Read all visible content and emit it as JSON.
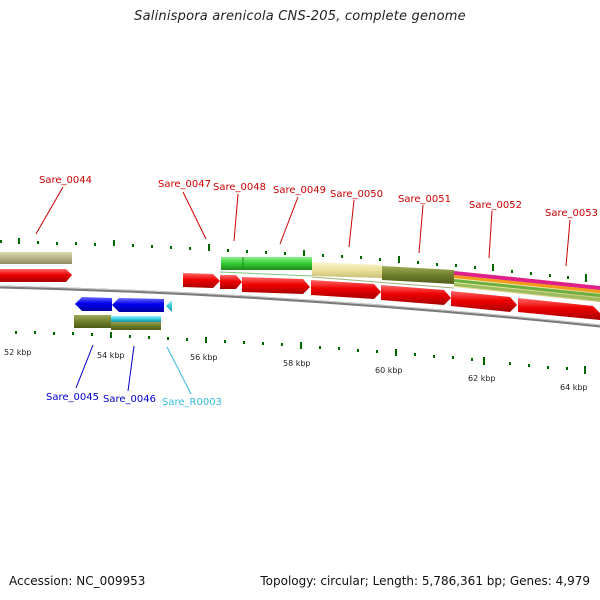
{
  "title": "Salinispora arenicola CNS-205, complete genome",
  "footer": {
    "accession": "Accession: NC_009953",
    "summary": "Topology: circular; Length: 5,786,361 bp; Genes: 4,979"
  },
  "colors": {
    "gene_label": "#cc0000",
    "cds_red": "#ee0000",
    "cds_blue": "#0000ee",
    "rna_cyan": "#33ccee",
    "tick": "#006600",
    "backbone": "#888888",
    "track_green": "#44cc44",
    "track_olive": "#778833",
    "track_khaki": "#b8b488",
    "track_yellow": "#eee5a0",
    "track_cyan": "#33ccdd"
  },
  "kbp_labels": [
    "52 kbp",
    "54 kbp",
    "56 kbp",
    "58 kbp",
    "60 kbp",
    "62 kbp",
    "64 kbp"
  ],
  "upper_labels": [
    {
      "text": "Sare_0044",
      "icon": "red-label"
    },
    {
      "text": "Sare_0047",
      "icon": "red-label"
    },
    {
      "text": "Sare_0048",
      "icon": "red-label"
    },
    {
      "text": "Sare_0049",
      "icon": "red-label"
    },
    {
      "text": "Sare_0050",
      "icon": "red-label"
    },
    {
      "text": "Sare_0051",
      "icon": "red-label"
    },
    {
      "text": "Sare_0052",
      "icon": "red-label"
    },
    {
      "text": "Sare_0053",
      "icon": "red-label"
    }
  ],
  "lower_labels": [
    {
      "text": "Sare_0045",
      "color": "#0000cc"
    },
    {
      "text": "Sare_0046",
      "color": "#0000cc"
    },
    {
      "text": "Sare_R0003",
      "color": "#33bbdd"
    }
  ]
}
